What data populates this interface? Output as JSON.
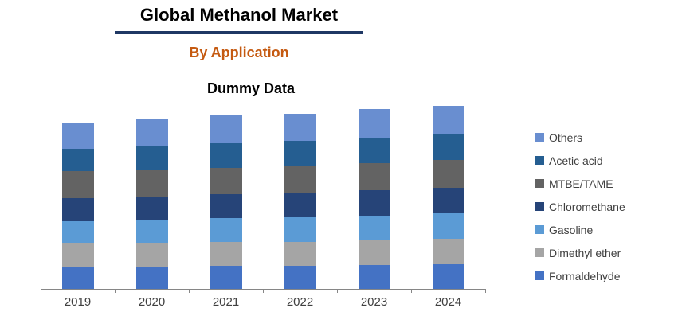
{
  "header": {
    "title": "Global Methanol Market",
    "subtitle": "By Application",
    "underline_color": "#1F3864",
    "subtitle_color": "#C55A11"
  },
  "chart_data": {
    "type": "bar",
    "stacked": true,
    "title": "Dummy Data",
    "categories": [
      "2019",
      "2020",
      "2021",
      "2022",
      "2023",
      "2024"
    ],
    "series": [
      {
        "name": "Formaldehyde",
        "color": "#4472C4",
        "values": [
          28,
          28,
          29,
          29,
          30,
          31
        ]
      },
      {
        "name": "Dimethyl ether",
        "color": "#A5A5A5",
        "values": [
          29,
          30,
          30,
          30,
          31,
          32
        ]
      },
      {
        "name": "Gasoline",
        "color": "#5B9BD5",
        "values": [
          28,
          29,
          30,
          31,
          31,
          32
        ]
      },
      {
        "name": "Chloromethane",
        "color": "#264478",
        "values": [
          29,
          29,
          30,
          31,
          32,
          32
        ]
      },
      {
        "name": "MTBE/TAME",
        "color": "#636363",
        "values": [
          34,
          33,
          33,
          33,
          34,
          35
        ]
      },
      {
        "name": "Acetic acid",
        "color": "#255E91",
        "values": [
          28,
          31,
          31,
          32,
          32,
          33
        ]
      },
      {
        "name": "Others",
        "color": "#698ED0",
        "values": [
          33,
          33,
          35,
          34,
          36,
          35
        ]
      }
    ],
    "legend_order_top_to_bottom": [
      "Others",
      "Acetic acid",
      "MTBE/TAME",
      "Chloromethane",
      "Gasoline",
      "Dimethyl ether",
      "Formaldehyde"
    ],
    "legend_position": "right",
    "x_axis": {
      "line_color": "#868686",
      "label_color": "#404040",
      "ticks": 7
    },
    "y_axis": {
      "visible": false
    },
    "legend_text_color": "#404040",
    "note": "values are relative units estimated from bar pixel heights; no y-axis labels are shown"
  }
}
